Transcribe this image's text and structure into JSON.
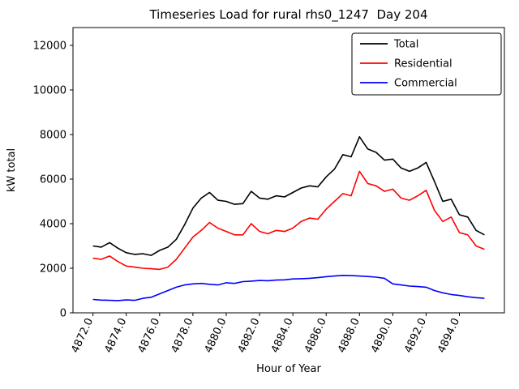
{
  "title": "Timeseries Load for rural rhs0_1247  Day 204",
  "chart_data": {
    "type": "line",
    "title": "Timeseries Load for rural rhs0_1247  Day 204",
    "xlabel": "Hour of Year",
    "ylabel": "kW total",
    "xlim": [
      4870.8,
      4896.7
    ],
    "ylim": [
      0,
      12800
    ],
    "grid": false,
    "legend_position": "upper right",
    "xticks": [
      4872.0,
      4874.0,
      4876.0,
      4878.0,
      4880.0,
      4882.0,
      4884.0,
      4886.0,
      4888.0,
      4890.0,
      4892.0,
      4894.0
    ],
    "yticks": [
      0,
      2000,
      4000,
      6000,
      8000,
      10000,
      12000
    ],
    "x": [
      4872.0,
      4872.5,
      4873.0,
      4873.5,
      4874.0,
      4874.5,
      4875.0,
      4875.5,
      4876.0,
      4876.5,
      4877.0,
      4877.5,
      4878.0,
      4878.5,
      4879.0,
      4879.5,
      4880.0,
      4880.5,
      4881.0,
      4881.5,
      4882.0,
      4882.5,
      4883.0,
      4883.5,
      4884.0,
      4884.5,
      4885.0,
      4885.5,
      4886.0,
      4886.5,
      4887.0,
      4887.5,
      4888.0,
      4888.5,
      4889.0,
      4889.5,
      4890.0,
      4890.5,
      4891.0,
      4891.5,
      4892.0,
      4892.5,
      4893.0,
      4893.5,
      4894.0,
      4894.5,
      4895.0,
      4895.5
    ],
    "series": [
      {
        "name": "Total",
        "color": "#000000",
        "values": [
          3000,
          2950,
          3150,
          2900,
          2700,
          2620,
          2650,
          2580,
          2800,
          2950,
          3300,
          3950,
          4700,
          5150,
          5400,
          5050,
          5000,
          4870,
          4900,
          5450,
          5150,
          5100,
          5250,
          5200,
          5400,
          5600,
          5700,
          5650,
          6100,
          6450,
          7100,
          7000,
          7900,
          7350,
          7200,
          6850,
          6900,
          6500,
          6350,
          6500,
          6750,
          5900,
          5000,
          5100,
          4400,
          4300,
          3700,
          3500
        ]
      },
      {
        "name": "Residential",
        "color": "#ff0000",
        "values": [
          2450,
          2400,
          2550,
          2300,
          2100,
          2050,
          2000,
          1980,
          1950,
          2050,
          2400,
          2900,
          3400,
          3700,
          4050,
          3800,
          3650,
          3500,
          3500,
          4000,
          3650,
          3550,
          3700,
          3650,
          3800,
          4100,
          4250,
          4200,
          4650,
          5000,
          5350,
          5250,
          6350,
          5800,
          5700,
          5450,
          5550,
          5150,
          5050,
          5250,
          5500,
          4600,
          4100,
          4300,
          3600,
          3500,
          3000,
          2850
        ]
      },
      {
        "name": "Commercial",
        "color": "#0000ff",
        "values": [
          600,
          570,
          560,
          550,
          580,
          560,
          650,
          700,
          850,
          1000,
          1150,
          1250,
          1300,
          1320,
          1280,
          1250,
          1350,
          1320,
          1400,
          1420,
          1450,
          1440,
          1470,
          1480,
          1520,
          1530,
          1550,
          1580,
          1620,
          1650,
          1680,
          1670,
          1650,
          1630,
          1600,
          1550,
          1300,
          1250,
          1200,
          1180,
          1150,
          1000,
          900,
          820,
          780,
          720,
          680,
          650
        ]
      }
    ]
  }
}
